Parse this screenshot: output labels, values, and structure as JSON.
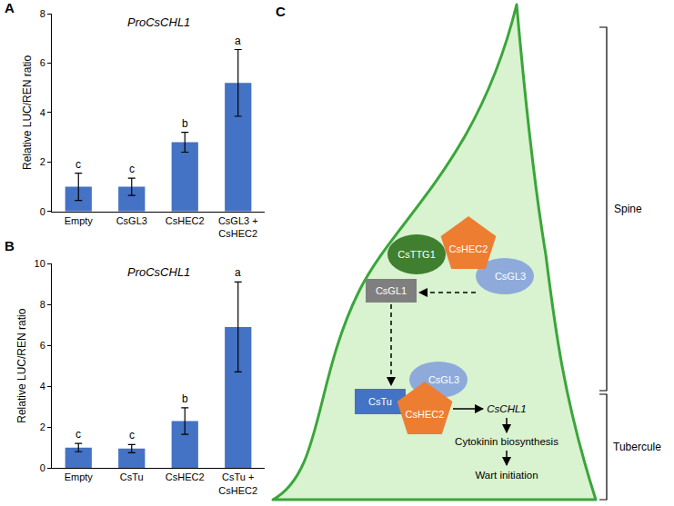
{
  "chart_data": [
    {
      "type": "bar",
      "panel": "A",
      "title": "ProCsCHL1",
      "y_label": "Relative LUC/REN ratio",
      "categories": [
        "Empty",
        "CsGL3",
        "CsHEC2",
        "CsGL3 + CsHEC2"
      ],
      "values": [
        1.0,
        1.0,
        2.8,
        5.2
      ],
      "errors": [
        0.55,
        0.35,
        0.4,
        1.35
      ],
      "annotations": [
        "c",
        "c",
        "b",
        "a"
      ],
      "color": "#4472c4",
      "ylim": [
        0,
        8
      ],
      "yticks": [
        0,
        2,
        4,
        6,
        8
      ],
      "grid": false
    },
    {
      "type": "bar",
      "panel": "B",
      "title": "ProCsCHL1",
      "y_label": "Relative LUC/REN ratio",
      "categories": [
        "Empty",
        "CsTu",
        "CsHEC2",
        "CsTu + CsHEC2"
      ],
      "values": [
        1.0,
        0.95,
        2.3,
        6.9
      ],
      "errors": [
        0.2,
        0.2,
        0.65,
        2.2
      ],
      "annotations": [
        "c",
        "c",
        "b",
        "a"
      ],
      "color": "#4472c4",
      "ylim": [
        0,
        10
      ],
      "yticks": [
        0,
        2,
        4,
        6,
        8,
        10
      ],
      "grid": false
    }
  ],
  "diagram": {
    "panel": "C",
    "nodes": [
      "CsTTG1",
      "CsHEC2",
      "CsGL3",
      "CsGL1",
      "CsGL3",
      "CsTu",
      "CsHEC2"
    ],
    "pathway": [
      "CsCHL1",
      "Cytokinin biosynthesis",
      "Wart initiation"
    ],
    "regions": [
      "Spine",
      "Tubercule"
    ]
  }
}
